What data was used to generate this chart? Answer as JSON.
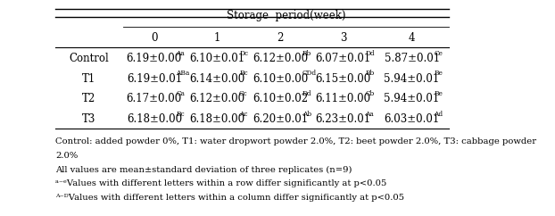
{
  "title": "Storage  period(week)",
  "col_headers": [
    "0",
    "1",
    "2",
    "3",
    "4"
  ],
  "row_headers": [
    "Control",
    "T1",
    "T2",
    "T3"
  ],
  "cells_plain": [
    [
      "6.19±0.00",
      "6.10±0.01",
      "6.12±0.00",
      "6.07±0.01",
      "5.87±0.01"
    ],
    [
      "6.19±0.01",
      "6.14±0.00",
      "6.10±0.00",
      "6.15±0.00",
      "5.94±0.01"
    ],
    [
      "6.17±0.00",
      "6.12±0.00",
      "6.10±0.02",
      "6.11±0.00",
      "5.94±0.01"
    ],
    [
      "6.18±0.00",
      "6.18±0.00",
      "6.20±0.01",
      "6.23±0.01",
      "6.03±0.01"
    ]
  ],
  "superscripts": [
    [
      "Aa",
      "Dc",
      "Bb",
      "Dd",
      "Ce"
    ],
    [
      "ABa",
      "Bc",
      "CDd",
      "Bb",
      "Be"
    ],
    [
      "Ca",
      "Cc",
      "Dd",
      "Cb",
      "Be"
    ],
    [
      "Bc",
      "Ac",
      "Ab",
      "Aa",
      "Ad"
    ]
  ],
  "footnotes": [
    "Control: added powder 0%, T1: water dropwort powder 2.0%, T2: beet powder 2.0%, T3: cabbage powder",
    "2.0%",
    "All values are mean±standard deviation of three replicates (n=9)",
    "ᵃ⁻ᵉValues with different letters within a row differ significantly at p<0.05",
    "ᴬ⁻ᴰValues with different letters within a column differ significantly at p<0.05"
  ],
  "bg_color": "white",
  "text_color": "black",
  "fontsize_table": 8.5,
  "fontsize_footnote": 7.2
}
